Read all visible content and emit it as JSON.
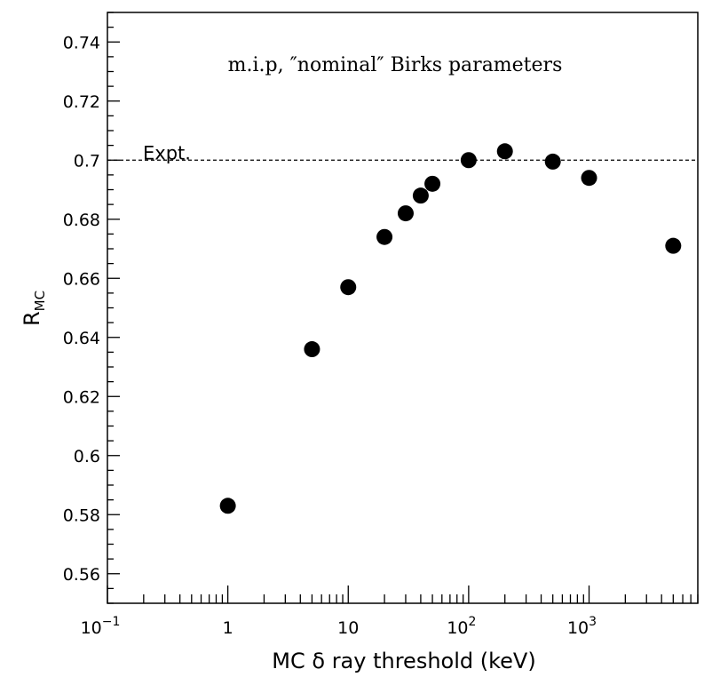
{
  "chart_data": {
    "type": "scatter",
    "title": "",
    "annotation": "m.i.p, ″nominal″ Birks parameters",
    "xlabel": "MC δ ray threshold (keV)",
    "ylabel": "R",
    "ylabel_subscript": "MC",
    "x_scale": "log",
    "xlim": [
      0.1,
      8000
    ],
    "ylim": [
      0.55,
      0.75
    ],
    "x_tick_labels": [
      {
        "value": 0.1,
        "base": "10",
        "exp": "−1"
      },
      {
        "value": 1,
        "base": "1",
        "exp": ""
      },
      {
        "value": 10,
        "base": "10",
        "exp": ""
      },
      {
        "value": 100,
        "base": "10",
        "exp": "2"
      },
      {
        "value": 1000,
        "base": "10",
        "exp": "3"
      }
    ],
    "y_ticks": [
      0.56,
      0.58,
      0.6,
      0.62,
      0.64,
      0.66,
      0.68,
      0.7,
      0.72,
      0.74
    ],
    "y_tick_labels": [
      "0.56",
      "0.58",
      "0.6",
      "0.62",
      "0.64",
      "0.66",
      "0.68",
      "0.7",
      "0.72",
      "0.74"
    ],
    "reference_line": {
      "y": 0.7,
      "label": "Expt.",
      "style": "dashed"
    },
    "grid": false,
    "point_color": "#000000",
    "points": [
      {
        "x": 1,
        "y": 0.583
      },
      {
        "x": 5,
        "y": 0.636
      },
      {
        "x": 10,
        "y": 0.657
      },
      {
        "x": 20,
        "y": 0.674
      },
      {
        "x": 30,
        "y": 0.682
      },
      {
        "x": 40,
        "y": 0.688
      },
      {
        "x": 50,
        "y": 0.692
      },
      {
        "x": 100,
        "y": 0.7
      },
      {
        "x": 200,
        "y": 0.703
      },
      {
        "x": 500,
        "y": 0.6995
      },
      {
        "x": 1000,
        "y": 0.694
      },
      {
        "x": 5000,
        "y": 0.671
      }
    ]
  }
}
